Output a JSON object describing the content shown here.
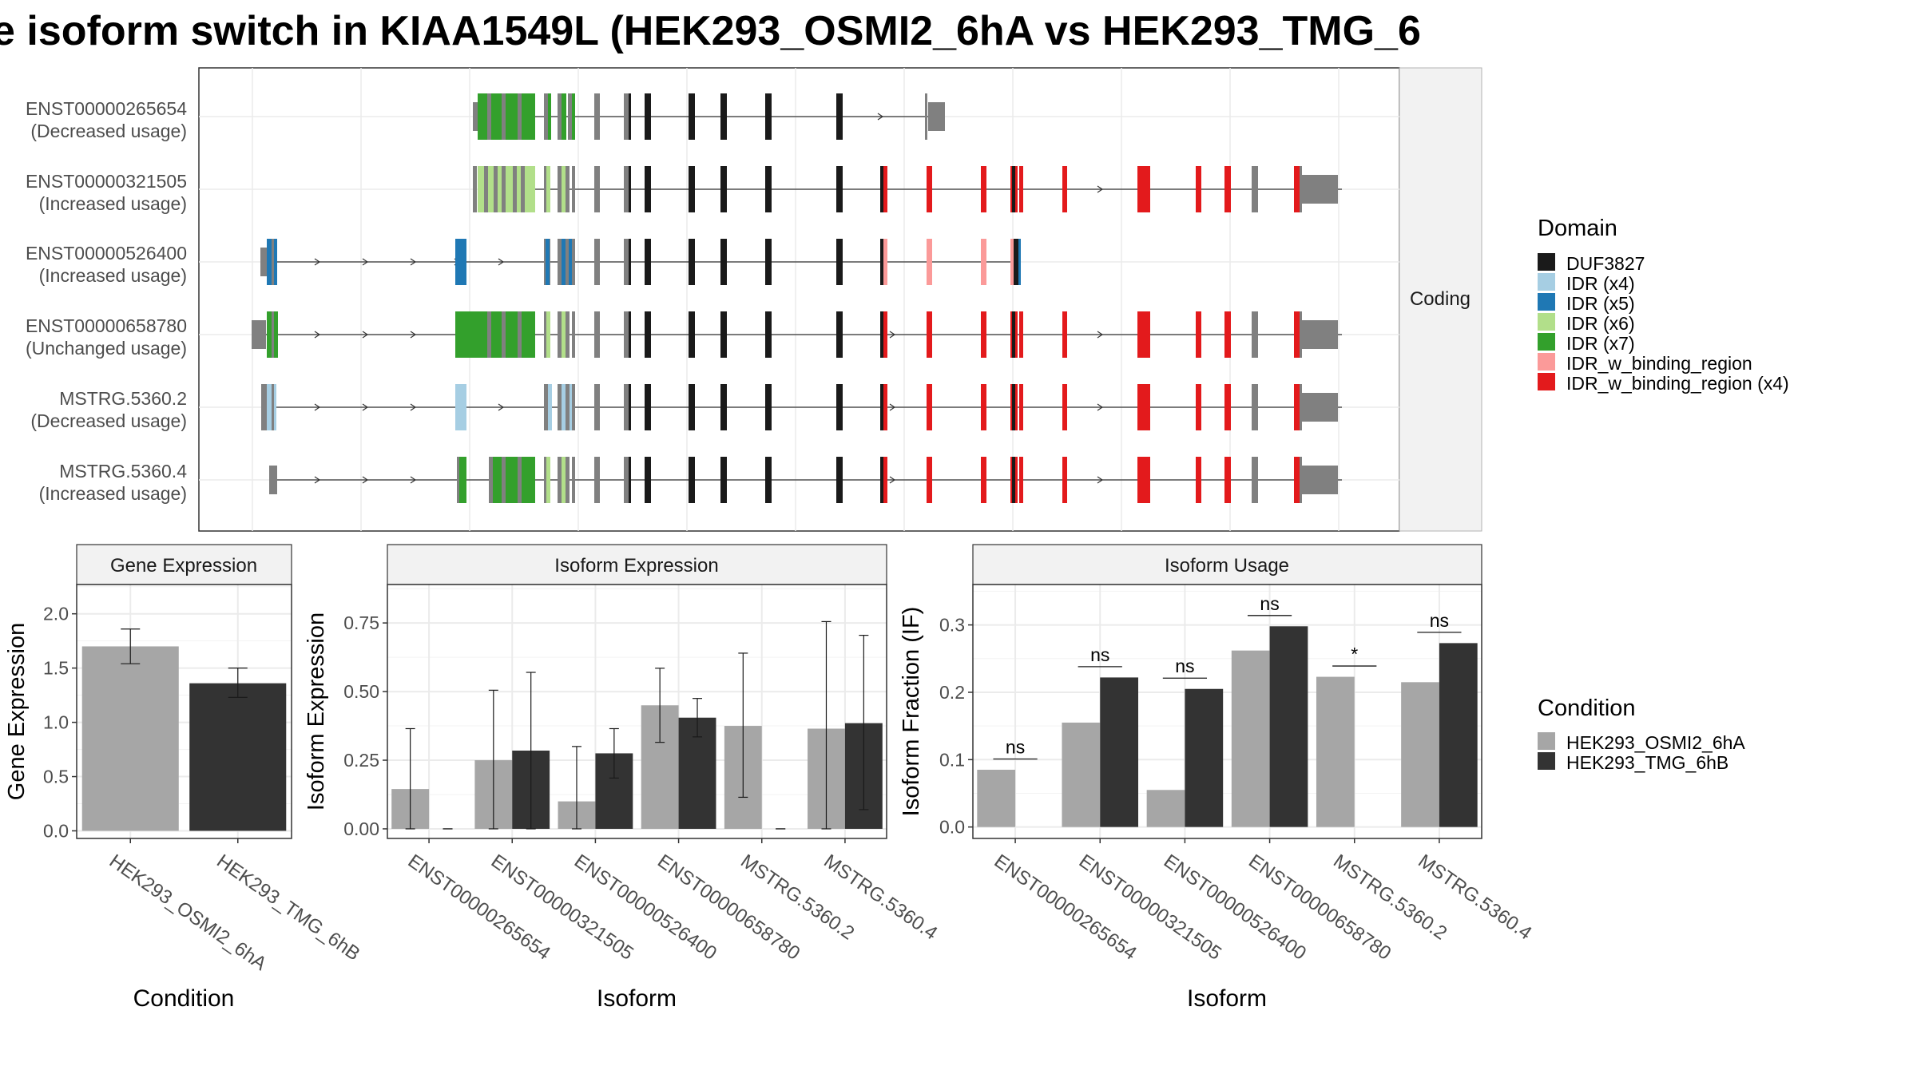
{
  "title": "e isoform switch in KIAA1549L (HEK293_OSMI2_6hA vs HEK293_TMG_6",
  "structure": {
    "strip": "Coding",
    "transcripts": [
      {
        "id": "ENST00000265654",
        "usage": "(Decreased usage)"
      },
      {
        "id": "ENST00000321505",
        "usage": "(Increased usage)"
      },
      {
        "id": "ENST00000526400",
        "usage": "(Increased usage)"
      },
      {
        "id": "ENST00000658780",
        "usage": "(Unchanged usage)"
      },
      {
        "id": "MSTRG.5360.2",
        "usage": "(Decreased usage)"
      },
      {
        "id": "MSTRG.5360.4",
        "usage": "(Increased usage)"
      }
    ],
    "domain_legend": {
      "title": "Domain",
      "items": [
        {
          "label": "DUF3827",
          "color": "#1a1a1a"
        },
        {
          "label": "IDR (x4)",
          "color": "#a6cee3"
        },
        {
          "label": "IDR (x5)",
          "color": "#1f78b4"
        },
        {
          "label": "IDR (x6)",
          "color": "#b2df8a"
        },
        {
          "label": "IDR (x7)",
          "color": "#33a02c"
        },
        {
          "label": "IDR_w_binding_region",
          "color": "#fb9a99"
        },
        {
          "label": "IDR_w_binding_region (x4)",
          "color": "#e31a1c"
        }
      ]
    }
  },
  "condition_legend": {
    "title": "Condition",
    "items": [
      {
        "label": "HEK293_OSMI2_6hA",
        "color": "#a6a6a6"
      },
      {
        "label": "HEK293_TMG_6hB",
        "color": "#333333"
      }
    ]
  },
  "chart_data": [
    {
      "type": "bar",
      "title": "Gene Expression",
      "xlabel": "Condition",
      "ylabel": "Gene Expression",
      "categories": [
        "HEK293_OSMI2_6hA",
        "HEK293_TMG_6hB"
      ],
      "values": [
        1.7,
        1.36
      ],
      "err_low": [
        1.54,
        1.23
      ],
      "err_high": [
        1.86,
        1.5
      ],
      "ylim": [
        -0.07,
        2.27
      ],
      "yticks": [
        "0.0",
        "0.5",
        "1.0",
        "1.5",
        "2.0"
      ],
      "grid": true
    },
    {
      "type": "bar",
      "title": "Isoform Expression",
      "xlabel": "Isoform",
      "ylabel": "Isoform Expression",
      "categories": [
        "ENST00000265654",
        "ENST00000321505",
        "ENST00000526400",
        "ENST00000658780",
        "MSTRG.5360.2",
        "MSTRG.5360.4"
      ],
      "series": [
        {
          "name": "HEK293_OSMI2_6hA",
          "values": [
            0.145,
            0.25,
            0.1,
            0.45,
            0.375,
            0.365
          ],
          "err_low": [
            0.0,
            0.0,
            0.0,
            0.315,
            0.115,
            0.0
          ],
          "err_high": [
            0.365,
            0.505,
            0.3,
            0.585,
            0.64,
            0.755
          ]
        },
        {
          "name": "HEK293_TMG_6hB",
          "values": [
            0.0,
            0.285,
            0.275,
            0.405,
            0.0,
            0.385
          ],
          "err_low": [
            0.0,
            0.0,
            0.185,
            0.335,
            0.0,
            0.07
          ],
          "err_high": [
            0.0,
            0.57,
            0.365,
            0.475,
            0.0,
            0.705
          ]
        }
      ],
      "ylim": [
        -0.035,
        0.89
      ],
      "yticks": [
        "0.00",
        "0.25",
        "0.50",
        "0.75"
      ],
      "grid": true
    },
    {
      "type": "bar",
      "title": "Isoform Usage",
      "xlabel": "Isoform",
      "ylabel": "Isoform Fraction (IF)",
      "categories": [
        "ENST00000265654",
        "ENST00000321505",
        "ENST00000526400",
        "ENST00000658780",
        "MSTRG.5360.2",
        "MSTRG.5360.4"
      ],
      "series": [
        {
          "name": "HEK293_OSMI2_6hA",
          "values": [
            0.085,
            0.155,
            0.055,
            0.262,
            0.223,
            0.215
          ]
        },
        {
          "name": "HEK293_TMG_6hB",
          "values": [
            0.0,
            0.222,
            0.205,
            0.298,
            0.0,
            0.273
          ]
        }
      ],
      "significance": [
        "ns",
        "ns",
        "ns",
        "ns",
        "*",
        "ns"
      ],
      "sig_line_y": [
        0.101,
        0.238,
        0.221,
        0.314,
        0.239,
        0.289
      ],
      "ylim": [
        -0.017,
        0.36
      ],
      "yticks": [
        "0.0",
        "0.1",
        "0.2",
        "0.3"
      ],
      "grid": true
    }
  ]
}
